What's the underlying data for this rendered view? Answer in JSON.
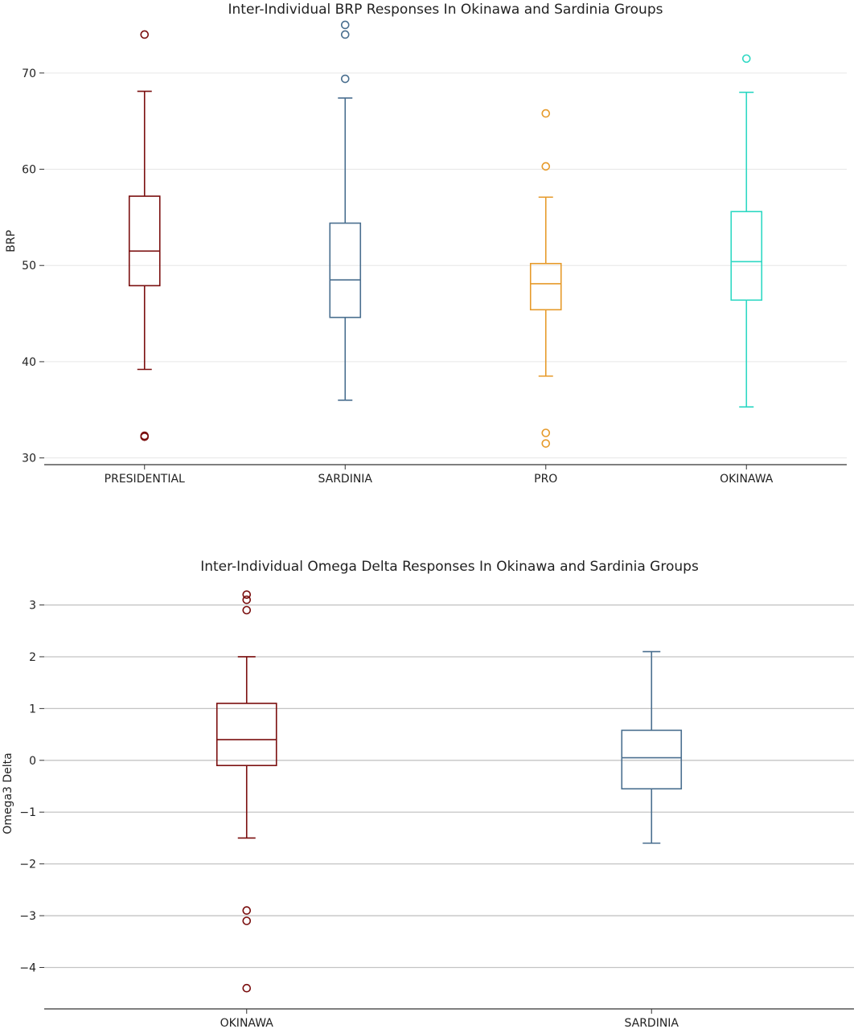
{
  "chart_data": [
    {
      "type": "box",
      "title": "Inter-Individual BRP Responses In Okinawa and Sardinia Groups",
      "xlabel": "",
      "ylabel": "BRP",
      "ylim": [
        29.3,
        75.5
      ],
      "yticks": [
        30,
        40,
        50,
        60,
        70
      ],
      "grid": true,
      "categories": [
        "PRESIDENTIAL",
        "SARDINIA",
        "PRO",
        "OKINAWA"
      ],
      "colors": [
        "#7a0e0e",
        "#4a6f8f",
        "#e69a2a",
        "#2ed8c3"
      ],
      "boxes": [
        {
          "whisker_low": 39.2,
          "q1": 47.9,
          "median": 51.5,
          "q3": 57.2,
          "whisker_high": 68.1,
          "outliers": [
            74.0,
            32.3,
            32.2
          ]
        },
        {
          "whisker_low": 36.0,
          "q1": 44.6,
          "median": 48.5,
          "q3": 54.4,
          "whisker_high": 67.4,
          "outliers": [
            75.0,
            74.0,
            69.4
          ]
        },
        {
          "whisker_low": 38.5,
          "q1": 45.4,
          "median": 48.1,
          "q3": 50.2,
          "whisker_high": 57.1,
          "outliers": [
            65.8,
            60.3,
            32.6,
            31.5
          ]
        },
        {
          "whisker_low": 35.3,
          "q1": 46.4,
          "median": 50.4,
          "q3": 55.6,
          "whisker_high": 68.0,
          "outliers": [
            71.5
          ]
        }
      ]
    },
    {
      "type": "box",
      "title": "Inter-Individual Omega Delta Responses In Okinawa and Sardinia Groups",
      "xlabel": "",
      "ylabel": "Omega3 Delta",
      "ylim": [
        -4.8,
        3.35
      ],
      "yticks": [
        3,
        2,
        1,
        0,
        -1,
        -2,
        -3,
        -4
      ],
      "ytick_labels": [
        "3",
        "2",
        "1",
        "0",
        "−1",
        "−2",
        "−3",
        "−4"
      ],
      "grid": true,
      "categories": [
        "OKINAWA",
        "SARDINIA"
      ],
      "colors": [
        "#7a0e0e",
        "#4a6f8f"
      ],
      "boxes": [
        {
          "whisker_low": -1.5,
          "q1": -0.1,
          "median": 0.4,
          "q3": 1.1,
          "whisker_high": 2.0,
          "outliers": [
            3.2,
            3.1,
            2.9,
            -2.9,
            -3.1,
            -4.4
          ]
        },
        {
          "whisker_low": -1.6,
          "q1": -0.55,
          "median": 0.05,
          "q3": 0.58,
          "whisker_high": 2.1,
          "outliers": []
        }
      ]
    }
  ]
}
